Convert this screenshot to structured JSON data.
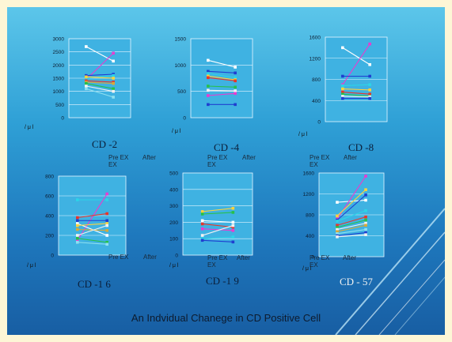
{
  "caption": "An Indvidual Chanege in CD Positive Cell",
  "unit_label": "/ μ l",
  "x_label_pre": "Pre EX",
  "x_label_after": "After",
  "x_label_ex": "EX",
  "colors": {
    "slide_top": "#5cc6ea",
    "slide_bottom": "#185ea3",
    "plot_bg": "#3fb2e2",
    "frame": "#fdf6d6"
  },
  "chart_data": [
    {
      "type": "line",
      "title": "CD -2",
      "x": [
        "Pre EX",
        "After EX"
      ],
      "ylim": [
        0,
        3000
      ],
      "yticks": [
        0,
        500,
        1000,
        1500,
        2000,
        2500,
        3000
      ],
      "series": [
        {
          "values": [
            2700,
            2150
          ],
          "color": "#ffffff"
        },
        {
          "values": [
            1450,
            2450
          ],
          "color": "#e83cd0"
        },
        {
          "values": [
            1600,
            1650
          ],
          "color": "#1f3fd0"
        },
        {
          "values": [
            1500,
            1600
          ],
          "color": "#2bd4e8"
        },
        {
          "values": [
            1550,
            1500
          ],
          "color": "#ffd23a"
        },
        {
          "values": [
            1400,
            1350
          ],
          "color": "#e8352a"
        },
        {
          "values": [
            1350,
            1300
          ],
          "color": "#d7a93a"
        },
        {
          "values": [
            1300,
            1100
          ],
          "color": "#27c04a"
        },
        {
          "values": [
            1200,
            1000
          ],
          "color": "#f2f2f2"
        },
        {
          "values": [
            1100,
            780
          ],
          "color": "#8ee0f0"
        }
      ]
    },
    {
      "type": "line",
      "title": "CD -4",
      "x": [
        "Pre EX",
        "After EX"
      ],
      "ylim": [
        0,
        1500
      ],
      "yticks": [
        0,
        500,
        1000,
        1500
      ],
      "series": [
        {
          "values": [
            1090,
            960
          ],
          "color": "#ffffff"
        },
        {
          "values": [
            880,
            850
          ],
          "color": "#1f3fd0"
        },
        {
          "values": [
            840,
            760
          ],
          "color": "#2bd4e8"
        },
        {
          "values": [
            790,
            720
          ],
          "color": "#ffd23a"
        },
        {
          "values": [
            760,
            700
          ],
          "color": "#e8352a"
        },
        {
          "values": [
            600,
            580
          ],
          "color": "#27c04a"
        },
        {
          "values": [
            520,
            510
          ],
          "color": "#f2f2f2"
        },
        {
          "values": [
            420,
            460
          ],
          "color": "#e83cd0"
        },
        {
          "values": [
            250,
            250
          ],
          "color": "#1f3fd0"
        }
      ]
    },
    {
      "type": "line",
      "title": "CD -8",
      "x": [
        "Pre EX",
        "After EX"
      ],
      "ylim": [
        0,
        1600
      ],
      "yticks": [
        0,
        400,
        800,
        1200,
        1600
      ],
      "series": [
        {
          "values": [
            1400,
            1080
          ],
          "color": "#ffffff"
        },
        {
          "values": [
            700,
            1470
          ],
          "color": "#e83cd0"
        },
        {
          "values": [
            860,
            860
          ],
          "color": "#1f3fd0"
        },
        {
          "values": [
            680,
            700
          ],
          "color": "#2bd4e8"
        },
        {
          "values": [
            620,
            600
          ],
          "color": "#ffd23a"
        },
        {
          "values": [
            560,
            520
          ],
          "color": "#e8352a"
        },
        {
          "values": [
            520,
            480
          ],
          "color": "#27c04a"
        },
        {
          "values": [
            480,
            470
          ],
          "color": "#f2f2f2"
        },
        {
          "values": [
            440,
            440
          ],
          "color": "#1f3fd0"
        }
      ]
    },
    {
      "type": "line",
      "title": "CD -1 6",
      "x": [
        "Pre EX",
        "After EX"
      ],
      "ylim": [
        0,
        800
      ],
      "yticks": [
        0,
        200,
        400,
        600,
        800
      ],
      "series": [
        {
          "values": [
            560,
            560
          ],
          "color": "#2bd4e8"
        },
        {
          "values": [
            150,
            620
          ],
          "color": "#e83cd0"
        },
        {
          "values": [
            380,
            420
          ],
          "color": "#e8352a"
        },
        {
          "values": [
            350,
            350
          ],
          "color": "#1f3fd0"
        },
        {
          "values": [
            320,
            200
          ],
          "color": "#ffffff"
        },
        {
          "values": [
            300,
            320
          ],
          "color": "#ffd23a"
        },
        {
          "values": [
            260,
            250
          ],
          "color": "#d7a93a"
        },
        {
          "values": [
            200,
            300
          ],
          "color": "#f2f2f2"
        },
        {
          "values": [
            170,
            130
          ],
          "color": "#27c04a"
        },
        {
          "values": [
            130,
            110
          ],
          "color": "#8ee0f0"
        }
      ]
    },
    {
      "type": "line",
      "title": "CD -1 9",
      "x": [
        "Pre EX",
        "After EX"
      ],
      "ylim": [
        0,
        500
      ],
      "yticks": [
        0,
        100,
        200,
        300,
        400,
        500
      ],
      "series": [
        {
          "values": [
            265,
            285
          ],
          "color": "#ffd23a"
        },
        {
          "values": [
            250,
            260
          ],
          "color": "#27c04a"
        },
        {
          "values": [
            210,
            200
          ],
          "color": "#ffffff"
        },
        {
          "values": [
            190,
            170
          ],
          "color": "#e8352a"
        },
        {
          "values": [
            160,
            150
          ],
          "color": "#e83cd0"
        },
        {
          "values": [
            120,
            180
          ],
          "color": "#f2f2f2"
        },
        {
          "values": [
            100,
            110
          ],
          "color": "#2bd4e8"
        },
        {
          "values": [
            90,
            80
          ],
          "color": "#1f3fd0"
        }
      ]
    },
    {
      "type": "line",
      "title": "CD - 57",
      "x": [
        "Pre EX",
        "After EX"
      ],
      "ylim": [
        0,
        1600
      ],
      "yticks": [
        0,
        400,
        800,
        1200,
        1600
      ],
      "series": [
        {
          "values": [
            1040,
            1080
          ],
          "color": "#ffffff"
        },
        {
          "values": [
            720,
            1540
          ],
          "color": "#e83cd0"
        },
        {
          "values": [
            780,
            1280
          ],
          "color": "#ffd23a"
        },
        {
          "values": [
            700,
            1180
          ],
          "color": "#1f3fd0"
        },
        {
          "values": [
            680,
            880
          ],
          "color": "#2bd4e8"
        },
        {
          "values": [
            600,
            760
          ],
          "color": "#e8352a"
        },
        {
          "values": [
            560,
            700
          ],
          "color": "#27c04a"
        },
        {
          "values": [
            520,
            640
          ],
          "color": "#f2f2f2"
        },
        {
          "values": [
            480,
            600
          ],
          "color": "#d7a93a"
        },
        {
          "values": [
            440,
            520
          ],
          "color": "#8ee0f0"
        },
        {
          "values": [
            400,
            460
          ],
          "color": "#1f3fd0"
        },
        {
          "values": [
            380,
            420
          ],
          "color": "#f2f2f2"
        }
      ]
    }
  ]
}
